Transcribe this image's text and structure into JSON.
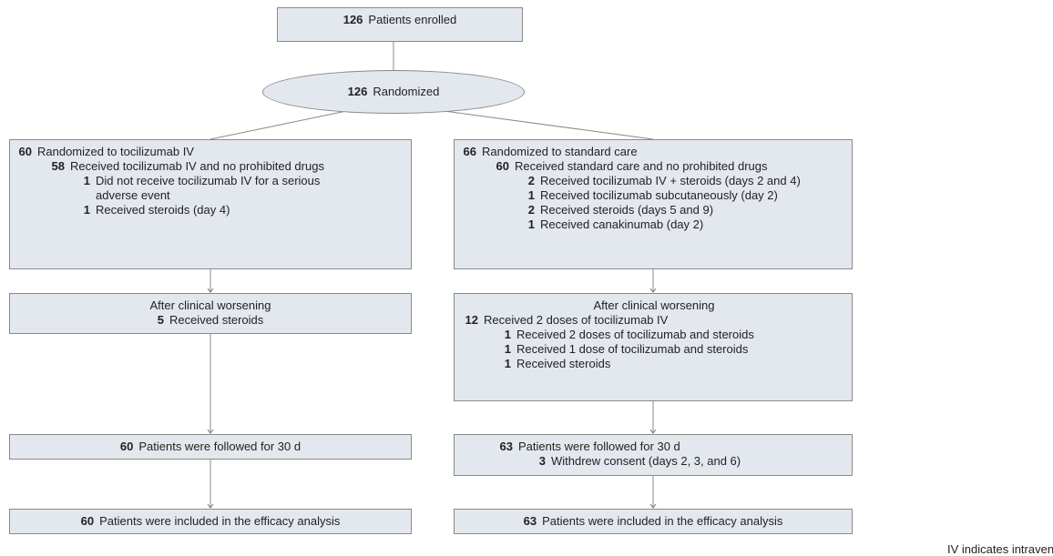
{
  "nodes": [
    {
      "n": 126,
      "label": "Patients enrolled"
    },
    {
      "n": 126,
      "label": "Randomized"
    },
    {
      "n": 60,
      "label": "Randomized to tocilizumab IV",
      "items": [
        {
          "n": 58,
          "label": "Received tocilizumab IV and no prohibited drugs",
          "items": [
            {
              "n": 1,
              "label": "Did not receive tocilizumab IV for a serious adverse event"
            },
            {
              "n": 1,
              "label": "Received steroids (day 4)"
            }
          ]
        }
      ]
    },
    {
      "n": 66,
      "label": "Randomized to standard care",
      "items": [
        {
          "n": 60,
          "label": "Received standard care and no prohibited drugs",
          "items": [
            {
              "n": 2,
              "label": "Received tocilizumab IV + steroids (days 2 and 4)"
            },
            {
              "n": 1,
              "label": "Received tocilizumab subcutaneously (day 2)"
            },
            {
              "n": 2,
              "label": "Received steroids (days 5 and 9)"
            },
            {
              "n": 1,
              "label": "Received canakinumab (day 2)"
            }
          ]
        }
      ]
    },
    {
      "title": "After clinical worsening",
      "items": [
        {
          "n": 5,
          "label": "Received steroids"
        }
      ]
    },
    {
      "title": "After clinical worsening",
      "items": [
        {
          "n": 12,
          "label": "Received 2 doses of tocilizumab IV",
          "items": [
            {
              "n": 1,
              "label": "Received 2 doses of tocilizumab and steroids"
            },
            {
              "n": 1,
              "label": "Received 1 dose of tocilizumab and steroids"
            },
            {
              "n": 1,
              "label": "Received steroids"
            }
          ]
        }
      ]
    },
    {
      "n": 60,
      "label": "Patients were followed for 30 d"
    },
    {
      "n": 63,
      "label": "Patients were followed for 30 d",
      "items": [
        {
          "n": 3,
          "label": "Withdrew consent (days 2, 3, and 6)"
        }
      ]
    },
    {
      "n": 60,
      "label": "Patients were included in the efficacy analysis"
    },
    {
      "n": 63,
      "label": "Patients were included in the efficacy analysis"
    }
  ],
  "footnote": "IV indicates intravenous."
}
